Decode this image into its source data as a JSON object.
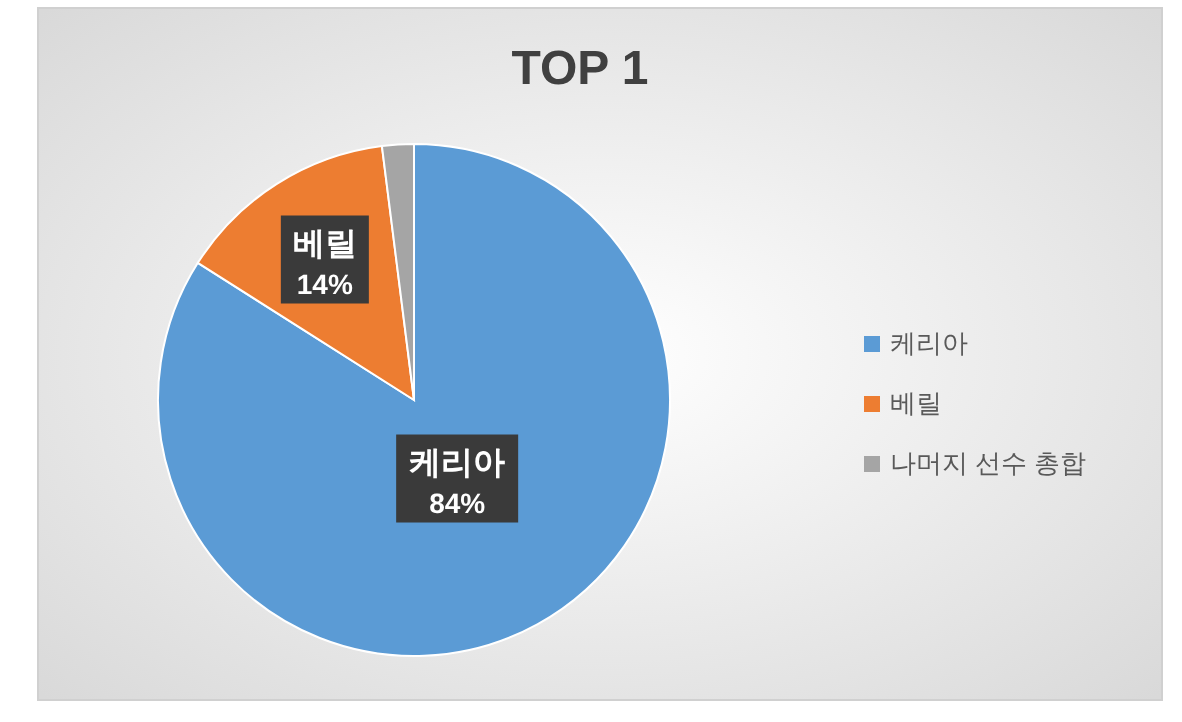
{
  "chart_data": {
    "type": "pie",
    "title": "TOP 1",
    "categories": [
      "케리아",
      "베릴",
      "나머지 선수 총합"
    ],
    "values": [
      84,
      14,
      2
    ],
    "colors": [
      "#5b9bd5",
      "#ed7d31",
      "#a5a5a5"
    ],
    "value_labels": [
      "84%",
      "14%",
      null
    ],
    "legend": "right"
  }
}
